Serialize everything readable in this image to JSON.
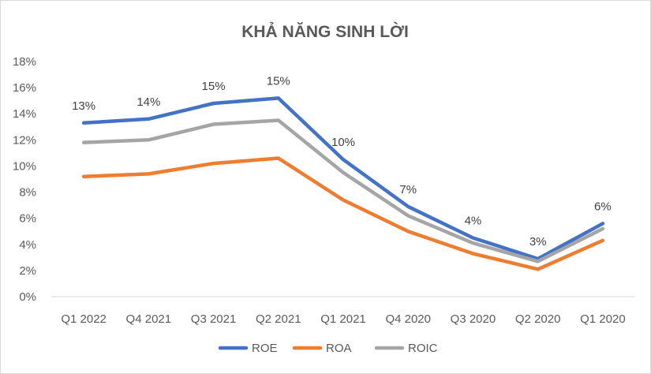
{
  "chart_data": {
    "type": "line",
    "title": "KHẢ NĂNG SINH LỜI",
    "categories": [
      "Q1 2022",
      "Q4 2021",
      "Q3 2021",
      "Q2 2021",
      "Q1 2021",
      "Q4 2020",
      "Q3 2020",
      "Q2 2020",
      "Q1 2020"
    ],
    "series": [
      {
        "name": "ROE",
        "color": "#4472c4",
        "values": [
          13.3,
          13.6,
          14.8,
          15.2,
          10.5,
          6.9,
          4.5,
          2.9,
          5.6
        ]
      },
      {
        "name": "ROA",
        "color": "#ed7d31",
        "values": [
          9.2,
          9.4,
          10.2,
          10.6,
          7.4,
          5.0,
          3.3,
          2.1,
          4.3
        ]
      },
      {
        "name": "ROIC",
        "color": "#a5a5a5",
        "values": [
          11.8,
          12.0,
          13.2,
          13.5,
          9.5,
          6.2,
          4.1,
          2.7,
          5.2
        ]
      }
    ],
    "data_labels": {
      "series": "ROE",
      "labels": [
        "13%",
        "14%",
        "15%",
        "15%",
        "10%",
        "7%",
        "4%",
        "3%",
        "6%"
      ]
    },
    "y_ticks": [
      "0%",
      "2%",
      "4%",
      "6%",
      "8%",
      "10%",
      "12%",
      "14%",
      "16%",
      "18%"
    ],
    "ylim": [
      0,
      18
    ],
    "y_tick_step": 2,
    "grid": false,
    "legend": "bottom",
    "axis_color": "#d9d9d9"
  }
}
